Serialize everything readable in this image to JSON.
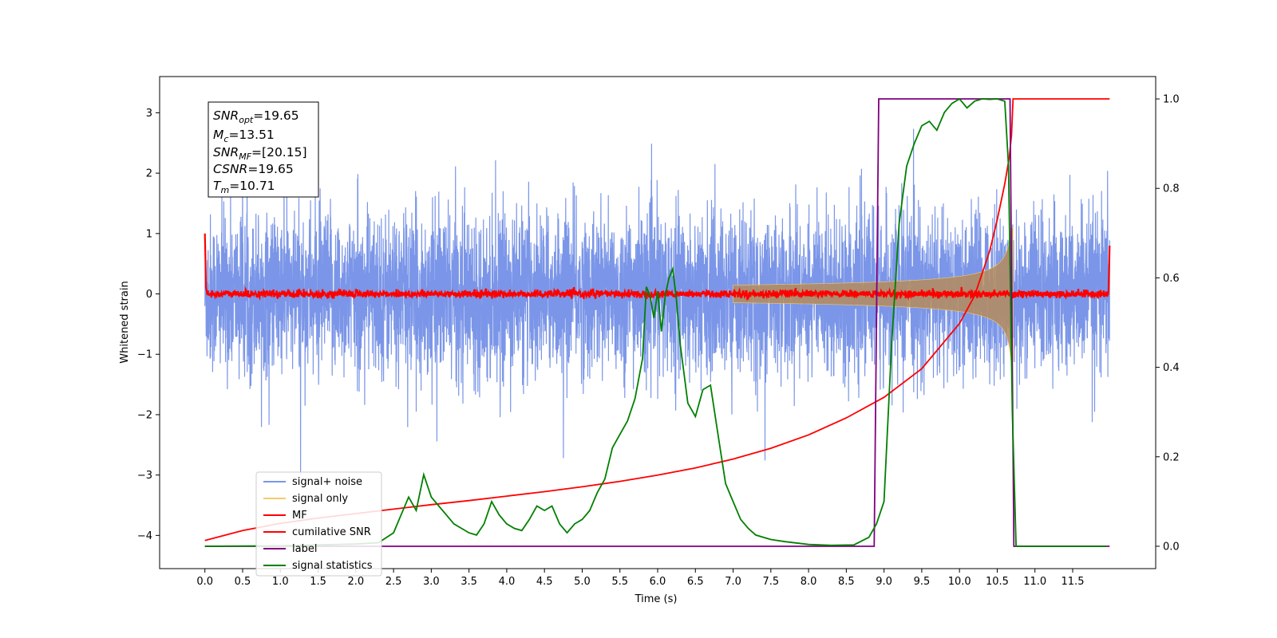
{
  "chart_data": {
    "type": "line",
    "title": "",
    "xlabel": "Time (s)",
    "ylabel": "Whitened strain",
    "xlim": [
      -0.6,
      12.6
    ],
    "ylim": [
      -4.55,
      3.6
    ],
    "ylim_right": [
      -0.05,
      1.05
    ],
    "x_ticks": [
      0.0,
      0.5,
      1.0,
      1.5,
      2.0,
      2.5,
      3.0,
      3.5,
      4.0,
      4.5,
      5.0,
      5.5,
      6.0,
      6.5,
      7.0,
      7.5,
      8.0,
      8.5,
      9.0,
      9.5,
      10.0,
      10.5,
      11.0,
      11.5
    ],
    "x_tick_labels": [
      "0.0",
      "0.5",
      "1.0",
      "1.5",
      "2.0",
      "2.5",
      "3.0",
      "3.5",
      "4.0",
      "4.5",
      "5.0",
      "5.5",
      "6.0",
      "6.5",
      "7.0",
      "7.5",
      "8.0",
      "8.5",
      "9.0",
      "9.5",
      "10.0",
      "10.5",
      "11.0",
      "11.5"
    ],
    "y_ticks": [
      3,
      2,
      1,
      0,
      -1,
      -2,
      -3,
      -4
    ],
    "y_tick_labels": [
      "3",
      "2",
      "1",
      "0",
      "−1",
      "−2",
      "−3",
      "−4"
    ],
    "y_right_ticks": [
      1.0,
      0.8,
      0.6,
      0.4,
      0.2,
      0.0
    ],
    "y_right_tick_labels": [
      "1.0",
      "0.8",
      "0.6",
      "0.4",
      "0.2",
      "0.0"
    ],
    "grid": false,
    "legend_position": "lower-left",
    "annotation": [
      {
        "base": "SNR",
        "sub": "opt",
        "value": "=19.65"
      },
      {
        "base": "M",
        "sub": "c",
        "value": "=13.51"
      },
      {
        "base": "SNR",
        "sub": "MF",
        "value": "=[20.15]"
      },
      {
        "base": "CSNR",
        "sub": "",
        "value": "=19.65"
      },
      {
        "base": "T",
        "sub": "m",
        "value": "=10.71"
      }
    ],
    "series": [
      {
        "name": "signal+ noise",
        "color": "#7b96e8",
        "axis": "left",
        "kind": "noise",
        "noise_std": 0.65,
        "clip": [
          -3.0,
          3.3
        ]
      },
      {
        "name": "signal only",
        "color": "#f5c96b",
        "axis": "left",
        "kind": "chirp",
        "merger_time": 10.71,
        "peak_amplitude": 1.1
      },
      {
        "name": "MF",
        "color": "#ff0000",
        "axis": "left",
        "kind": "mf",
        "noise_std": 0.03
      },
      {
        "name": "cumilative SNR",
        "color": "#ff0000",
        "axis": "right",
        "x": [
          0.0,
          0.5,
          1.0,
          1.5,
          2.0,
          2.5,
          3.0,
          3.5,
          4.0,
          4.5,
          5.0,
          5.5,
          6.0,
          6.5,
          7.0,
          7.5,
          8.0,
          8.5,
          9.0,
          9.5,
          10.0,
          10.2,
          10.4,
          10.5,
          10.6,
          10.66,
          10.69,
          10.71,
          11.0,
          11.5,
          11.99
        ],
        "y": [
          0.013,
          0.035,
          0.051,
          0.063,
          0.073,
          0.083,
          0.093,
          0.102,
          0.112,
          0.122,
          0.133,
          0.145,
          0.159,
          0.175,
          0.195,
          0.219,
          0.249,
          0.287,
          0.333,
          0.397,
          0.498,
          0.56,
          0.66,
          0.73,
          0.81,
          0.87,
          0.92,
          1.0,
          1.0,
          1.0,
          1.0
        ]
      },
      {
        "name": "label",
        "color": "#800080",
        "axis": "right",
        "x": [
          0.0,
          8.87,
          8.93,
          10.67,
          10.72,
          11.99
        ],
        "y": [
          0.0,
          0.0,
          1.0,
          1.0,
          0.0,
          0.0
        ]
      },
      {
        "name": "signal statistics",
        "color": "#008000",
        "axis": "right",
        "x": [
          0.0,
          1.0,
          2.0,
          2.3,
          2.5,
          2.6,
          2.7,
          2.8,
          2.9,
          3.0,
          3.1,
          3.2,
          3.3,
          3.4,
          3.5,
          3.6,
          3.7,
          3.8,
          3.9,
          4.0,
          4.1,
          4.2,
          4.3,
          4.4,
          4.5,
          4.6,
          4.7,
          4.8,
          4.9,
          5.0,
          5.1,
          5.2,
          5.3,
          5.4,
          5.5,
          5.6,
          5.7,
          5.8,
          5.85,
          5.9,
          5.95,
          6.0,
          6.05,
          6.1,
          6.15,
          6.2,
          6.25,
          6.3,
          6.4,
          6.5,
          6.6,
          6.7,
          6.8,
          6.9,
          7.0,
          7.1,
          7.2,
          7.3,
          7.5,
          7.7,
          8.0,
          8.3,
          8.6,
          8.8,
          8.9,
          9.0,
          9.1,
          9.2,
          9.3,
          9.4,
          9.5,
          9.6,
          9.7,
          9.8,
          9.9,
          10.0,
          10.1,
          10.2,
          10.3,
          10.4,
          10.5,
          10.6,
          10.65,
          10.7,
          10.75,
          11.0,
          11.5,
          11.95
        ],
        "y": [
          0.0,
          0.001,
          0.005,
          0.008,
          0.03,
          0.07,
          0.11,
          0.08,
          0.16,
          0.11,
          0.09,
          0.07,
          0.05,
          0.04,
          0.03,
          0.025,
          0.05,
          0.1,
          0.07,
          0.05,
          0.04,
          0.035,
          0.06,
          0.09,
          0.08,
          0.09,
          0.05,
          0.03,
          0.05,
          0.06,
          0.08,
          0.12,
          0.15,
          0.22,
          0.25,
          0.28,
          0.33,
          0.42,
          0.58,
          0.56,
          0.51,
          0.57,
          0.48,
          0.56,
          0.6,
          0.62,
          0.55,
          0.45,
          0.32,
          0.29,
          0.35,
          0.36,
          0.25,
          0.14,
          0.1,
          0.06,
          0.04,
          0.025,
          0.015,
          0.01,
          0.004,
          0.002,
          0.003,
          0.02,
          0.05,
          0.1,
          0.45,
          0.72,
          0.85,
          0.9,
          0.94,
          0.95,
          0.93,
          0.97,
          0.99,
          1.0,
          0.98,
          0.995,
          1.0,
          0.999,
          1.0,
          0.995,
          0.85,
          0.3,
          0.0,
          0.0,
          0.0,
          0.0
        ]
      }
    ]
  }
}
